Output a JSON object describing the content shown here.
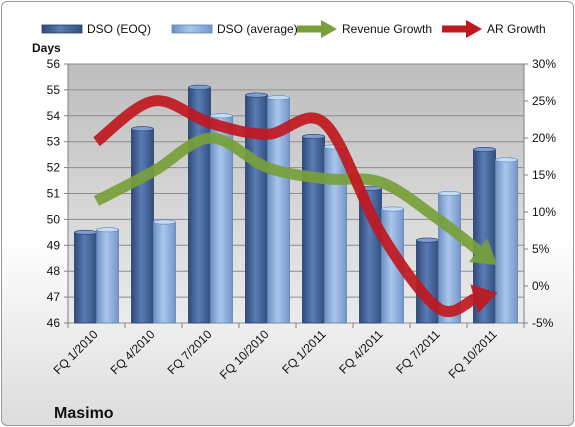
{
  "chart_data": {
    "type": "bar",
    "title": "Masimo",
    "ylabel": "Days",
    "ylim": [
      46,
      56
    ],
    "y2lim": [
      -5,
      30
    ],
    "y_ticks": [
      "46",
      "47",
      "48",
      "49",
      "50",
      "51",
      "52",
      "53",
      "54",
      "55",
      "56"
    ],
    "y2_ticks": [
      "-5%",
      "0%",
      "5%",
      "10%",
      "15%",
      "20%",
      "25%",
      "30%"
    ],
    "categories": [
      "FQ 1/2010",
      "FQ 4/2010",
      "FQ 7/2010",
      "FQ 10/2010",
      "FQ 1/2011",
      "FQ 4/2011",
      "FQ 7/2011",
      "FQ 10/2011"
    ],
    "series": [
      {
        "name": "DSO (EOQ)",
        "type": "bar",
        "axis": "left",
        "color": "#4f6fa8",
        "values": [
          49.5,
          53.5,
          55.1,
          54.8,
          53.2,
          51.2,
          49.2,
          52.7
        ]
      },
      {
        "name": "DSO (average)",
        "type": "bar",
        "axis": "left",
        "color": "#8fb3e0",
        "values": [
          49.6,
          49.9,
          54.0,
          54.7,
          52.8,
          50.4,
          51.0,
          52.3
        ]
      },
      {
        "name": "Revenue Growth",
        "type": "line-arrow",
        "axis": "right",
        "color": "#77a03a",
        "values": [
          11.5,
          15.5,
          20.0,
          16.0,
          14.5,
          14.0,
          9.0,
          3.0
        ]
      },
      {
        "name": "AR Growth",
        "type": "line-arrow",
        "axis": "right",
        "color": "#c0181f",
        "values": [
          19.5,
          25.0,
          22.0,
          20.5,
          22.0,
          7.0,
          -3.0,
          -1.0
        ]
      }
    ],
    "legend": "top",
    "grid": true,
    "plot_background": "#c4c4c4"
  }
}
